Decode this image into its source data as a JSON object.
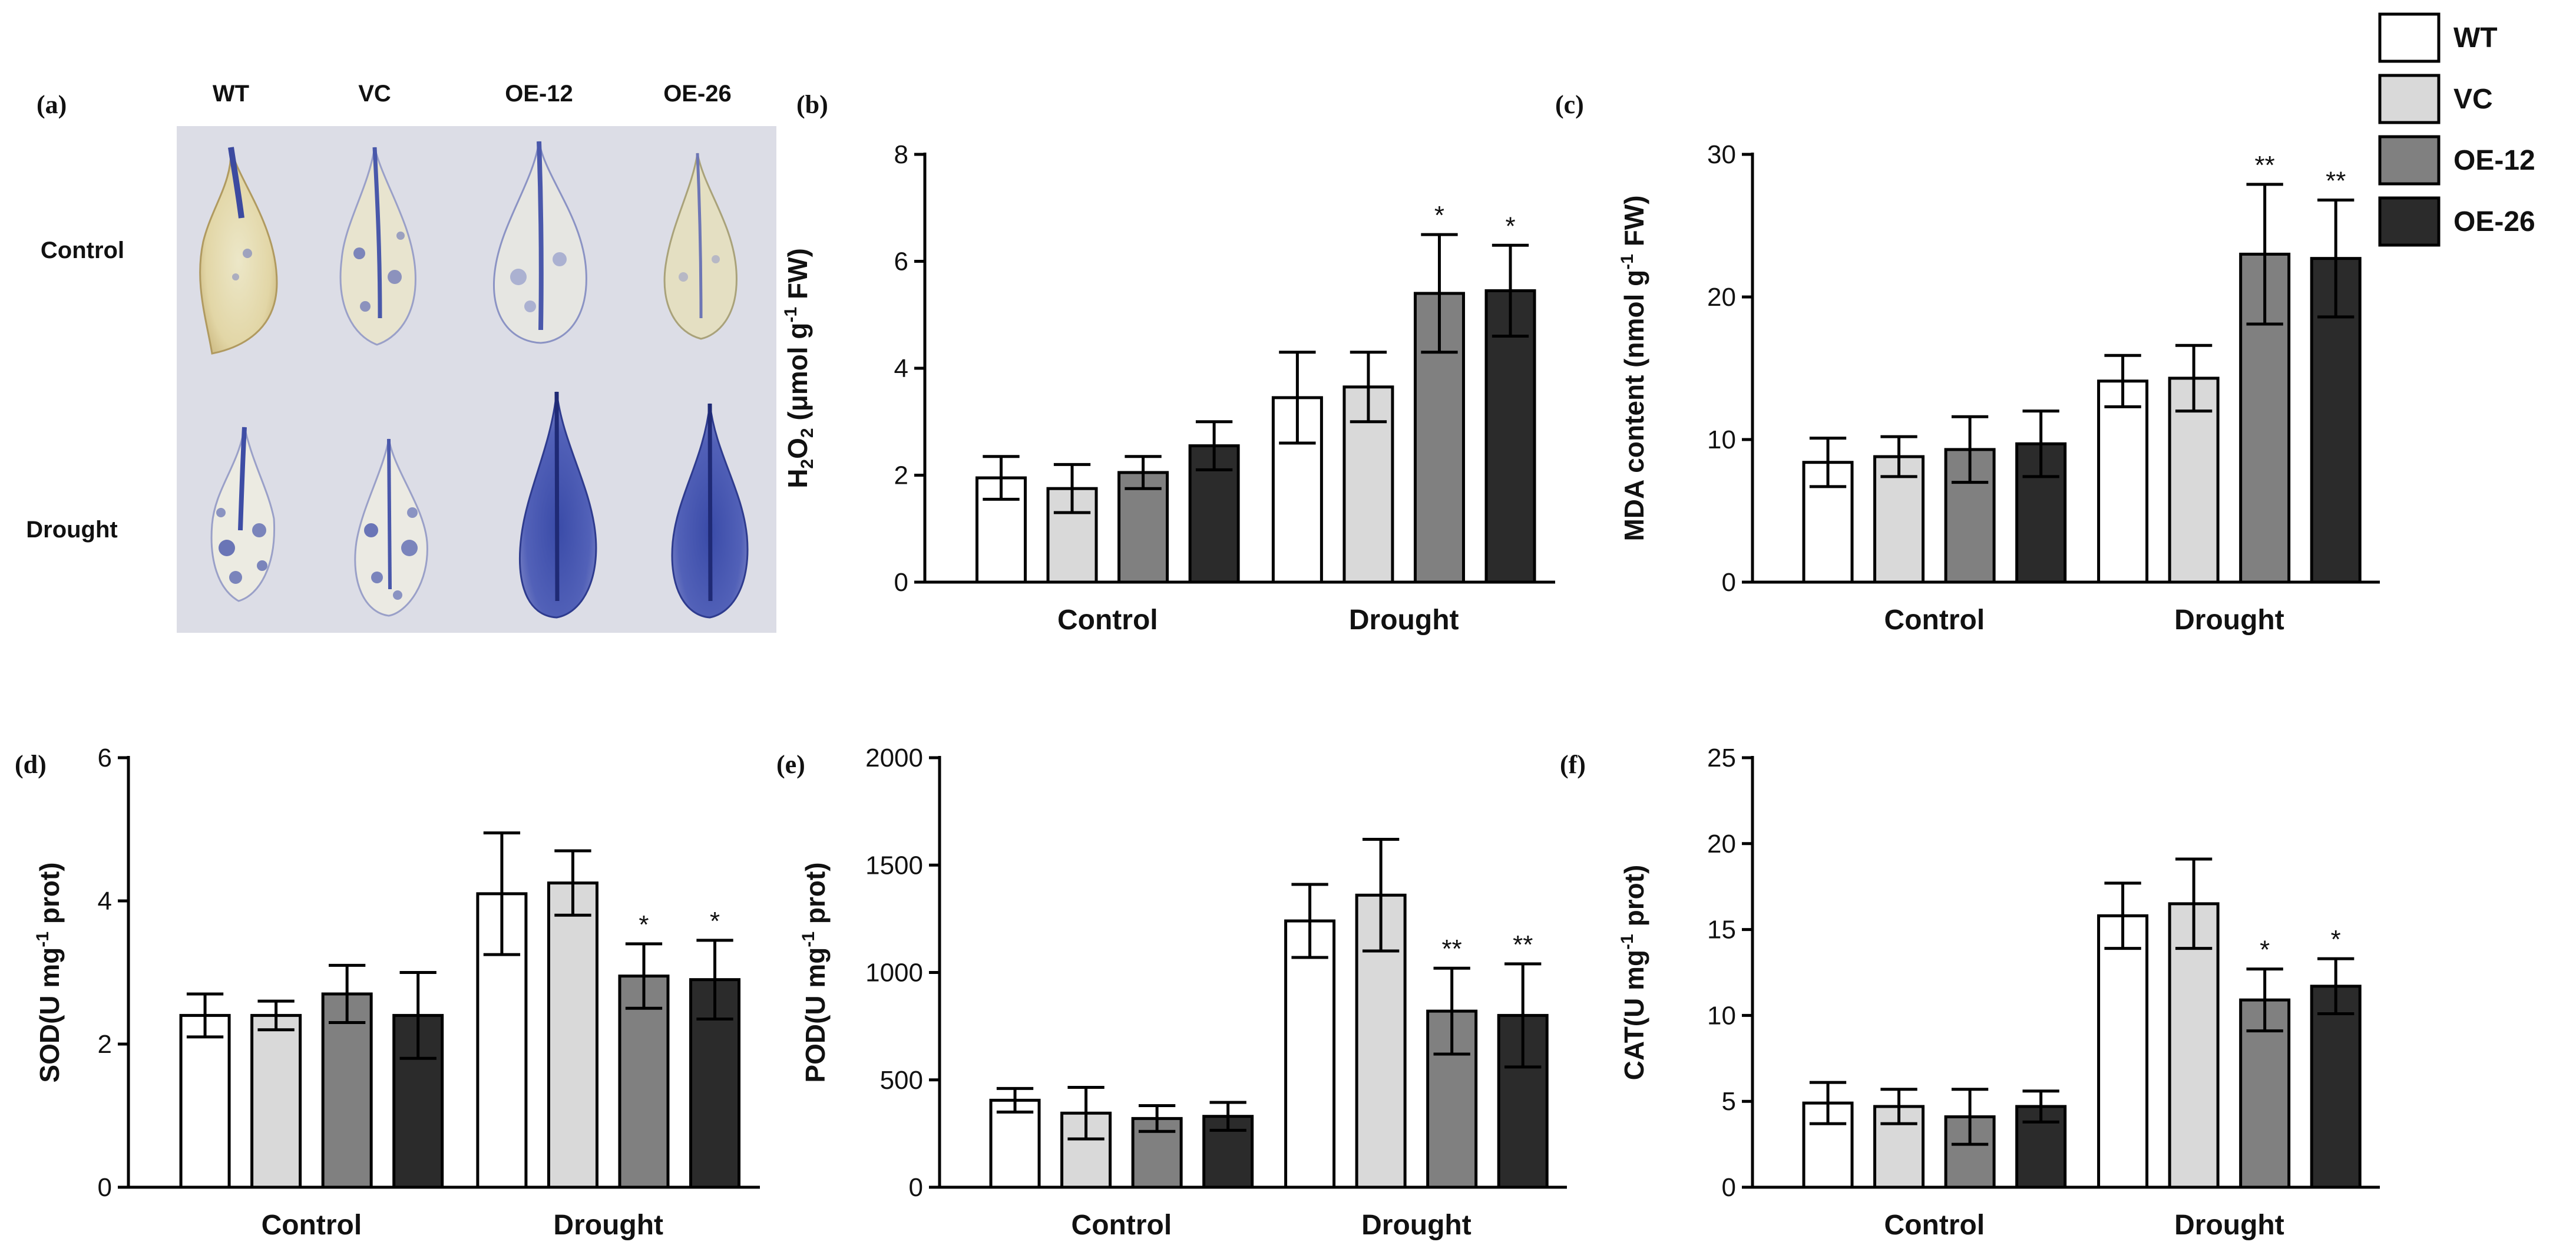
{
  "photo_panel": {
    "letter": "(a)",
    "genotype_labels": [
      "WT",
      "VC",
      "OE-12",
      "OE-26"
    ],
    "condition_labels": [
      "Control",
      "Drought"
    ]
  },
  "legend": {
    "items": [
      {
        "label": "WT",
        "color": "#ffffff"
      },
      {
        "label": "VC",
        "color": "#d9d9d9"
      },
      {
        "label": "OE-12",
        "color": "#808080"
      },
      {
        "label": "OE-26",
        "color": "#2b2b2b"
      }
    ]
  },
  "chart_data": [
    {
      "letter": "(b)",
      "type": "bar",
      "ylabel_parts": [
        "H",
        "2",
        "O",
        "2",
        " (μmol g",
        "-1",
        " FW)"
      ],
      "categories": [
        "Control",
        "Drought"
      ],
      "series_names": [
        "WT",
        "VC",
        "OE-12",
        "OE-26"
      ],
      "values": [
        [
          1.95,
          1.75,
          2.05,
          2.55
        ],
        [
          3.45,
          3.65,
          5.4,
          5.45
        ]
      ],
      "errors": [
        [
          0.4,
          0.45,
          0.3,
          0.45
        ],
        [
          0.85,
          0.65,
          1.1,
          0.85
        ]
      ],
      "annotations": [
        [
          "",
          "",
          "",
          ""
        ],
        [
          "",
          "",
          "*",
          "*"
        ]
      ],
      "ylim": [
        0,
        8
      ],
      "yticks": [
        0,
        2,
        4,
        6,
        8
      ]
    },
    {
      "letter": "(c)",
      "type": "bar",
      "ylabel_parts": [
        "MDA content (nmol g",
        "-1",
        " FW)"
      ],
      "categories": [
        "Control",
        "Drought"
      ],
      "series_names": [
        "WT",
        "VC",
        "OE-12",
        "OE-26"
      ],
      "values": [
        [
          8.4,
          8.8,
          9.3,
          9.7
        ],
        [
          14.1,
          14.3,
          23.0,
          22.7
        ]
      ],
      "errors": [
        [
          1.7,
          1.4,
          2.3,
          2.3
        ],
        [
          1.8,
          2.3,
          4.9,
          4.1
        ]
      ],
      "annotations": [
        [
          "",
          "",
          "",
          ""
        ],
        [
          "",
          "",
          "**",
          "**"
        ]
      ],
      "ylim": [
        0,
        30
      ],
      "yticks": [
        0,
        10,
        20,
        30
      ]
    },
    {
      "letter": "(d)",
      "type": "bar",
      "ylabel_parts": [
        "SOD(U mg",
        "-1",
        " prot)"
      ],
      "categories": [
        "Control",
        "Drought"
      ],
      "series_names": [
        "WT",
        "VC",
        "OE-12",
        "OE-26"
      ],
      "values": [
        [
          2.4,
          2.4,
          2.7,
          2.4
        ],
        [
          4.1,
          4.25,
          2.95,
          2.9
        ]
      ],
      "errors": [
        [
          0.3,
          0.2,
          0.4,
          0.6
        ],
        [
          0.85,
          0.45,
          0.45,
          0.55
        ]
      ],
      "annotations": [
        [
          "",
          "",
          "",
          ""
        ],
        [
          "",
          "",
          "*",
          "*"
        ]
      ],
      "ylim": [
        0,
        6
      ],
      "yticks": [
        0,
        2,
        4,
        6
      ]
    },
    {
      "letter": "(e)",
      "type": "bar",
      "ylabel_parts": [
        "POD(U mg",
        "-1",
        " prot)"
      ],
      "categories": [
        "Control",
        "Drought"
      ],
      "series_names": [
        "WT",
        "VC",
        "OE-12",
        "OE-26"
      ],
      "values": [
        [
          405,
          345,
          320,
          330
        ],
        [
          1240,
          1360,
          820,
          800
        ]
      ],
      "errors": [
        [
          55,
          120,
          60,
          65
        ],
        [
          170,
          260,
          200,
          240
        ]
      ],
      "annotations": [
        [
          "",
          "",
          "",
          ""
        ],
        [
          "",
          "",
          "**",
          "**"
        ]
      ],
      "ylim": [
        0,
        2000
      ],
      "yticks": [
        0,
        500,
        1000,
        1500,
        2000
      ]
    },
    {
      "letter": "(f)",
      "type": "bar",
      "ylabel_parts": [
        "CAT(U mg",
        "-1",
        " prot)"
      ],
      "categories": [
        "Control",
        "Drought"
      ],
      "series_names": [
        "WT",
        "VC",
        "OE-12",
        "OE-26"
      ],
      "values": [
        [
          4.9,
          4.7,
          4.1,
          4.7
        ],
        [
          15.8,
          16.5,
          10.9,
          11.7
        ]
      ],
      "errors": [
        [
          1.2,
          1.0,
          1.6,
          0.9
        ],
        [
          1.9,
          2.6,
          1.8,
          1.6
        ]
      ],
      "annotations": [
        [
          "",
          "",
          "",
          ""
        ],
        [
          "",
          "",
          "*",
          "*"
        ]
      ],
      "ylim": [
        0,
        25
      ],
      "yticks": [
        0,
        5,
        10,
        15,
        20,
        25
      ]
    }
  ]
}
